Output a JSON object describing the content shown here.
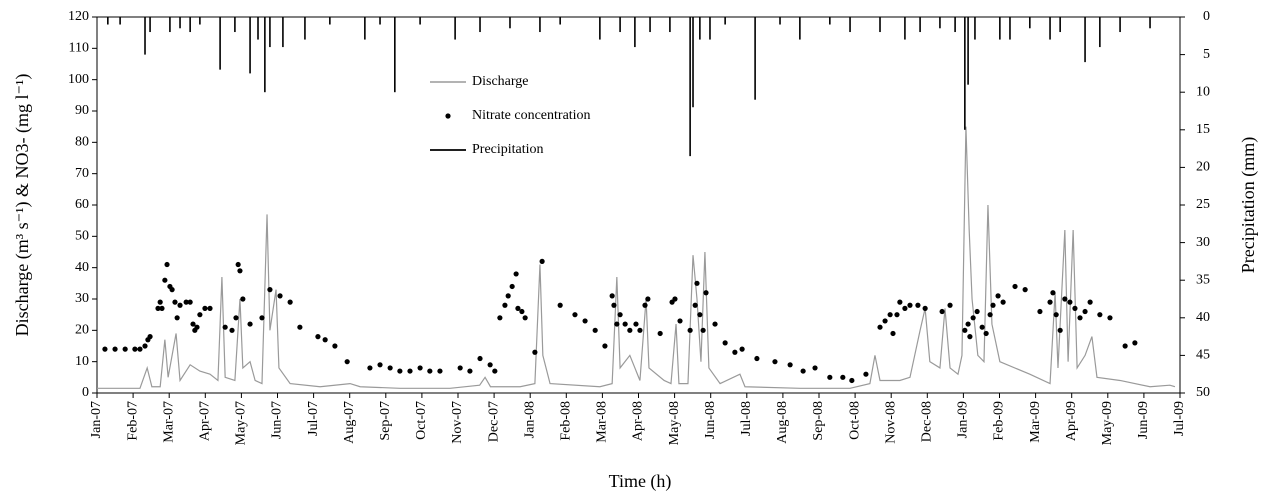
{
  "chart_data": {
    "type": "combo",
    "x_label": "Time (h)",
    "y_label": "Discharge (m³ s⁻¹) & NO3- (mg l⁻¹)",
    "y2_label": "Precipitation (mm)",
    "xlim": [
      0,
      30
    ],
    "xticks": [
      {
        "value": 0,
        "label": "Jan-07"
      },
      {
        "value": 1,
        "label": "Feb-07"
      },
      {
        "value": 2,
        "label": "Mar-07"
      },
      {
        "value": 3,
        "label": "Apr-07"
      },
      {
        "value": 4,
        "label": "May-07"
      },
      {
        "value": 5,
        "label": "Jun-07"
      },
      {
        "value": 6,
        "label": "Jul-07"
      },
      {
        "value": 7,
        "label": "Aug-07"
      },
      {
        "value": 8,
        "label": "Sep-07"
      },
      {
        "value": 9,
        "label": "Oct-07"
      },
      {
        "value": 10,
        "label": "Nov-07"
      },
      {
        "value": 11,
        "label": "Dec-07"
      },
      {
        "value": 12,
        "label": "Jan-08"
      },
      {
        "value": 13,
        "label": "Feb-08"
      },
      {
        "value": 14,
        "label": "Mar-08"
      },
      {
        "value": 15,
        "label": "Apr-08"
      },
      {
        "value": 16,
        "label": "May-08"
      },
      {
        "value": 17,
        "label": "Jun-08"
      },
      {
        "value": 18,
        "label": "Jul-08"
      },
      {
        "value": 19,
        "label": "Aug-08"
      },
      {
        "value": 20,
        "label": "Sep-08"
      },
      {
        "value": 21,
        "label": "Oct-08"
      },
      {
        "value": 22,
        "label": "Nov-08"
      },
      {
        "value": 23,
        "label": "Dec-08"
      },
      {
        "value": 24,
        "label": "Jan-09"
      },
      {
        "value": 25,
        "label": "Feb-09"
      },
      {
        "value": 26,
        "label": "Mar-09"
      },
      {
        "value": 27,
        "label": "Apr-09"
      },
      {
        "value": 28,
        "label": "May-09"
      },
      {
        "value": 29,
        "label": "Jun-09"
      },
      {
        "value": 30,
        "label": "Jul-09"
      }
    ],
    "ylim": [
      0,
      120
    ],
    "yticks": [
      0,
      10,
      20,
      30,
      40,
      50,
      60,
      70,
      80,
      90,
      100,
      110,
      120
    ],
    "y2lim": [
      0,
      50
    ],
    "y2_reversed": true,
    "y2ticks": [
      0,
      5,
      10,
      15,
      20,
      25,
      30,
      35,
      40,
      45,
      50
    ],
    "series": [
      {
        "name": "Discharge",
        "type": "line",
        "color": "#9a9a9a",
        "x": [
          0,
          1.19,
          1.39,
          1.52,
          1.75,
          1.88,
          1.97,
          2.19,
          2.3,
          2.58,
          2.85,
          3.13,
          3.35,
          3.46,
          3.55,
          3.82,
          3.96,
          4.04,
          4.24,
          4.38,
          4.57,
          4.71,
          4.79,
          4.96,
          5.04,
          5.35,
          6.18,
          7.01,
          7.29,
          8.39,
          9.78,
          10.6,
          10.75,
          10.9,
          11.72,
          12.13,
          12.27,
          12.35,
          12.55,
          13.93,
          14.27,
          14.4,
          14.49,
          14.76,
          15.04,
          15.21,
          15.29,
          15.71,
          15.9,
          16.04,
          16.12,
          16.37,
          16.51,
          16.62,
          16.73,
          16.84,
          16.95,
          17.26,
          17.81,
          17.95,
          19.47,
          20.86,
          21.41,
          21.55,
          21.69,
          22.24,
          22.52,
          22.8,
          22.94,
          23.07,
          23.35,
          23.49,
          23.63,
          23.85,
          23.96,
          24.07,
          24.16,
          24.24,
          24.4,
          24.57,
          24.68,
          24.79,
          25.01,
          25.84,
          26.4,
          26.54,
          26.62,
          26.81,
          26.9,
          27.04,
          27.15,
          27.37,
          27.56,
          27.7,
          28.34,
          29.17,
          29.72,
          29.86
        ],
        "values": [
          1.5,
          1.5,
          8,
          2,
          2,
          17,
          5,
          19,
          4,
          9,
          7,
          6,
          4,
          37,
          5,
          4,
          30,
          8,
          10,
          4,
          3,
          57,
          20,
          33,
          8,
          3,
          2,
          3,
          2,
          1.5,
          1.5,
          2.5,
          5,
          2,
          2,
          3,
          41,
          12,
          3,
          2,
          3,
          37,
          8,
          12,
          4,
          30,
          8,
          4,
          3,
          22,
          3,
          3,
          44,
          30,
          10,
          45,
          8,
          3,
          6,
          2,
          1.5,
          1.5,
          3,
          12,
          4,
          4,
          5,
          20,
          27,
          10,
          8,
          27,
          8,
          6,
          12,
          85,
          52,
          30,
          12,
          10,
          60,
          22,
          10,
          6,
          3,
          32,
          8,
          52,
          10,
          52,
          8,
          12,
          18,
          5,
          4,
          2,
          2.5,
          2
        ]
      },
      {
        "name": "Nitrate concentration",
        "type": "scatter",
        "color": "#000000",
        "x": [
          0.22,
          0.5,
          0.78,
          1.05,
          1.19,
          1.33,
          1.41,
          1.47,
          1.69,
          1.75,
          1.8,
          1.88,
          1.94,
          2.02,
          2.08,
          2.16,
          2.22,
          2.3,
          2.47,
          2.58,
          2.66,
          2.71,
          2.77,
          2.85,
          2.99,
          3.13,
          3.55,
          3.74,
          3.85,
          3.91,
          3.96,
          4.04,
          4.24,
          4.57,
          4.79,
          5.07,
          5.35,
          5.62,
          6.12,
          6.32,
          6.59,
          6.93,
          7.56,
          7.84,
          8.12,
          8.39,
          8.67,
          8.95,
          9.22,
          9.5,
          10.06,
          10.33,
          10.61,
          10.89,
          11.02,
          11.16,
          11.3,
          11.39,
          11.5,
          11.61,
          11.66,
          11.77,
          11.86,
          12.13,
          12.33,
          12.83,
          13.24,
          13.52,
          13.8,
          14.07,
          14.27,
          14.32,
          14.4,
          14.49,
          14.63,
          14.76,
          14.93,
          15.04,
          15.18,
          15.26,
          15.6,
          15.93,
          16.01,
          16.15,
          16.43,
          16.57,
          16.62,
          16.7,
          16.79,
          16.87,
          17.12,
          17.4,
          17.67,
          17.87,
          18.28,
          18.78,
          19.2,
          19.56,
          19.89,
          20.3,
          20.66,
          20.91,
          21.3,
          21.69,
          21.83,
          21.97,
          22.05,
          22.16,
          22.24,
          22.38,
          22.52,
          22.74,
          22.94,
          23.41,
          23.63,
          24.04,
          24.13,
          24.18,
          24.27,
          24.38,
          24.52,
          24.63,
          24.74,
          24.82,
          24.96,
          25.1,
          25.43,
          25.71,
          26.12,
          26.4,
          26.48,
          26.57,
          26.68,
          26.81,
          26.95,
          27.09,
          27.23,
          27.37,
          27.51,
          27.78,
          28.06,
          28.48,
          28.75
        ],
        "values": [
          14,
          14,
          14,
          14,
          14,
          15,
          17,
          18,
          27,
          29,
          27,
          36,
          41,
          34,
          33,
          29,
          24,
          28,
          29,
          29,
          22,
          20,
          21,
          25,
          27,
          27,
          21,
          20,
          24,
          41,
          39,
          30,
          22,
          24,
          33,
          31,
          29,
          21,
          18,
          17,
          15,
          10,
          8,
          9,
          8,
          7,
          7,
          8,
          7,
          7,
          8,
          7,
          11,
          9,
          7,
          24,
          28,
          31,
          34,
          38,
          27,
          26,
          24,
          13,
          42,
          28,
          25,
          23,
          20,
          15,
          31,
          28,
          22,
          25,
          22,
          20,
          22,
          20,
          28,
          30,
          19,
          29,
          30,
          23,
          20,
          28,
          35,
          25,
          20,
          32,
          22,
          16,
          13,
          14,
          11,
          10,
          9,
          7,
          8,
          5,
          5,
          4,
          6,
          21,
          23,
          25,
          19,
          25,
          29,
          27,
          28,
          28,
          27,
          26,
          28,
          20,
          22,
          18,
          24,
          26,
          21,
          19,
          25,
          28,
          31,
          29,
          34,
          33,
          26,
          29,
          32,
          25,
          20,
          30,
          29,
          27,
          24,
          26,
          29,
          25,
          24,
          15,
          16
        ]
      },
      {
        "name": "Precipitation",
        "type": "bar",
        "axis": "y2",
        "color": "#000000",
        "x": [
          0.3,
          0.64,
          1.33,
          1.47,
          2.02,
          2.3,
          2.58,
          2.85,
          3.41,
          3.82,
          4.24,
          4.46,
          4.65,
          4.79,
          5.15,
          5.76,
          6.45,
          7.42,
          7.84,
          8.25,
          8.95,
          9.92,
          10.61,
          11.44,
          12.27,
          12.83,
          13.93,
          14.49,
          14.9,
          15.32,
          15.87,
          16.43,
          16.51,
          16.7,
          16.98,
          17.4,
          18.23,
          18.92,
          19.47,
          20.3,
          20.86,
          21.69,
          22.38,
          22.8,
          23.35,
          23.77,
          24.04,
          24.13,
          24.32,
          25.01,
          25.29,
          25.84,
          26.4,
          26.68,
          27.37,
          27.78,
          28.34,
          29.17
        ],
        "values": [
          1,
          1,
          5,
          2,
          2,
          1.5,
          2,
          1,
          7,
          2,
          7.5,
          3,
          10,
          4,
          4,
          3,
          1,
          3,
          1,
          10,
          1,
          3,
          2,
          1.5,
          2,
          1,
          3,
          2,
          4,
          2,
          2,
          18.5,
          12,
          3,
          3,
          1,
          11,
          1,
          3,
          1,
          2,
          2,
          3,
          2,
          1.5,
          2,
          15,
          9,
          3,
          3,
          3,
          1.5,
          3,
          2,
          6,
          4,
          2,
          1.5
        ]
      }
    ]
  }
}
